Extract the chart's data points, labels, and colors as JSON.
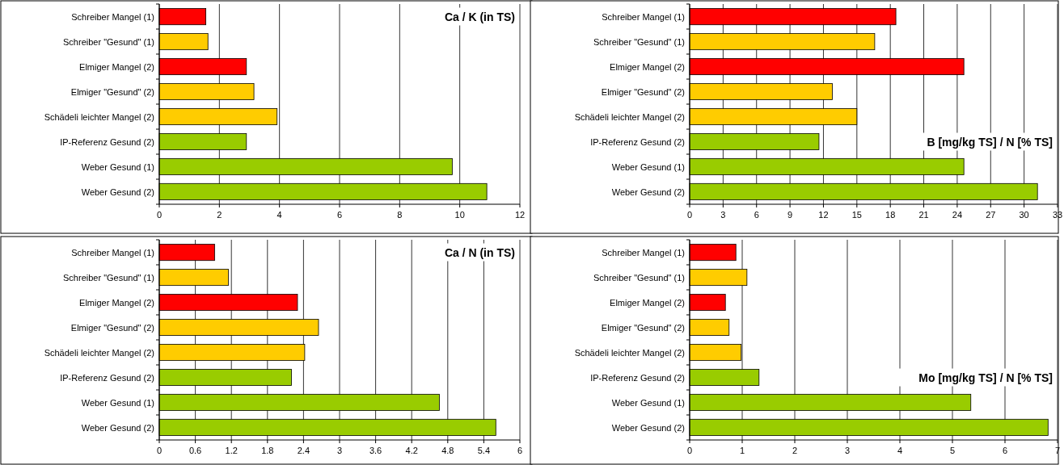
{
  "chart_data": [
    {
      "type": "bar",
      "orientation": "horizontal",
      "title": "Ca / K (in TS)",
      "categories": [
        "Schreiber Mangel (1)",
        "Schreiber \"Gesund\" (1)",
        "Elmiger Mangel (2)",
        "Elmiger \"Gesund\" (2)",
        "Schädeli leichter Mangel (2)",
        "IP-Referenz Gesund (2)",
        "Weber Gesund (1)",
        "Weber Gesund (2)"
      ],
      "values": [
        1.55,
        1.62,
        2.9,
        3.15,
        3.92,
        2.9,
        9.75,
        10.9
      ],
      "colors": [
        "#ff0000",
        "#ffcc00",
        "#ff0000",
        "#ffcc00",
        "#ffcc00",
        "#99cc00",
        "#99cc00",
        "#99cc00"
      ],
      "xlim": [
        0,
        12
      ],
      "xticks": [
        0,
        2,
        4,
        6,
        8,
        10,
        12
      ],
      "grid": "x"
    },
    {
      "type": "bar",
      "orientation": "horizontal",
      "title": "B [mg/kg TS] / N [% TS]",
      "categories": [
        "Schreiber Mangel (1)",
        "Schreiber \"Gesund\" (1)",
        "Elmiger Mangel (2)",
        "Elmiger \"Gesund\" (2)",
        "Schädeli leichter Mangel (2)",
        "IP-Referenz Gesund (2)",
        "Weber Gesund (1)",
        "Weber Gesund (2)"
      ],
      "values": [
        18.5,
        16.6,
        24.6,
        12.8,
        15.0,
        11.6,
        24.6,
        31.2
      ],
      "colors": [
        "#ff0000",
        "#ffcc00",
        "#ff0000",
        "#ffcc00",
        "#ffcc00",
        "#99cc00",
        "#99cc00",
        "#99cc00"
      ],
      "xlim": [
        0,
        33
      ],
      "xticks": [
        0,
        3,
        6,
        9,
        12,
        15,
        18,
        21,
        24,
        27,
        30,
        33
      ],
      "grid": "x"
    },
    {
      "type": "bar",
      "orientation": "horizontal",
      "title": "Ca / N (in TS)",
      "categories": [
        "Schreiber Mangel (1)",
        "Schreiber \"Gesund\" (1)",
        "Elmiger Mangel (2)",
        "Elmiger \"Gesund\" (2)",
        "Schädeli leichter Mangel (2)",
        "IP-Referenz Gesund (2)",
        "Weber Gesund (1)",
        "Weber Gesund (2)"
      ],
      "values": [
        0.92,
        1.15,
        2.3,
        2.65,
        2.42,
        2.2,
        4.66,
        5.6
      ],
      "colors": [
        "#ff0000",
        "#ffcc00",
        "#ff0000",
        "#ffcc00",
        "#ffcc00",
        "#99cc00",
        "#99cc00",
        "#99cc00"
      ],
      "xlim": [
        0,
        6
      ],
      "xticks": [
        0,
        0.6,
        1.2,
        1.8,
        2.4,
        3,
        3.6,
        4.2,
        4.8,
        5.4,
        6
      ],
      "grid": "x"
    },
    {
      "type": "bar",
      "orientation": "horizontal",
      "title": "Mo [mg/kg TS] / N [% TS]",
      "categories": [
        "Schreiber Mangel (1)",
        "Schreiber \"Gesund\" (1)",
        "Elmiger Mangel (2)",
        "Elmiger \"Gesund\" (2)",
        "Schädeli leichter Mangel (2)",
        "IP-Referenz Gesund (2)",
        "Weber Gesund (1)",
        "Weber Gesund (2)"
      ],
      "values": [
        0.88,
        1.09,
        0.68,
        0.75,
        0.98,
        1.32,
        5.35,
        6.82
      ],
      "colors": [
        "#ff0000",
        "#ffcc00",
        "#ff0000",
        "#ffcc00",
        "#ffcc00",
        "#99cc00",
        "#99cc00",
        "#99cc00"
      ],
      "xlim": [
        0,
        7
      ],
      "xticks": [
        0,
        1,
        2,
        3,
        4,
        5,
        6,
        7
      ],
      "grid": "x"
    }
  ]
}
